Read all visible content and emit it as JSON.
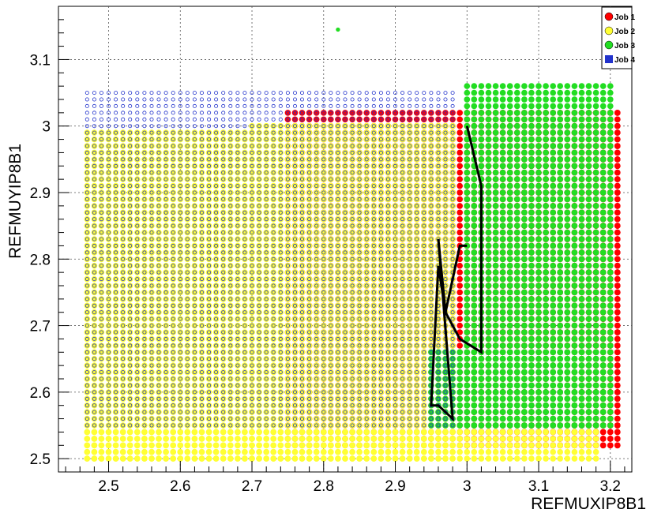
{
  "chart_data": {
    "type": "scatter",
    "title": "",
    "xlabel": "REFMUXIP8B1",
    "ylabel": "REFMUYIP8B1",
    "xlim": [
      2.43,
      3.23
    ],
    "ylim": [
      2.48,
      3.18
    ],
    "x_ticks": [
      2.5,
      2.6,
      2.7,
      2.8,
      2.9,
      3.0,
      3.1,
      3.2
    ],
    "x_tick_labels": [
      "2.5",
      "2.6",
      "2.7",
      "2.8",
      "2.9",
      "3",
      "3.1",
      "3.2"
    ],
    "y_ticks": [
      2.5,
      2.6,
      2.7,
      2.8,
      2.9,
      3.0,
      3.1
    ],
    "y_tick_labels": [
      "2.5",
      "2.6",
      "2.7",
      "2.8",
      "2.9",
      "3",
      "3.1"
    ],
    "grid": true,
    "legend_position": "top-right",
    "grid_step": 0.01,
    "series": [
      {
        "name": "Job 1",
        "color": "#ff0000",
        "marker": "filled-circle",
        "regions": [
          {
            "x": [
              2.75,
              3.21
            ],
            "y": [
              2.52,
              3.02
            ]
          },
          {
            "x": [
              3.0,
              3.21
            ],
            "y": [
              2.52,
              3.02
            ]
          },
          {
            "x": [
              3.18,
              3.21
            ],
            "y": [
              2.52,
              3.02
            ]
          }
        ]
      },
      {
        "name": "Job 2",
        "color": "#ffff33",
        "marker": "filled-circle",
        "regions": [
          {
            "x": [
              2.47,
              2.7
            ],
            "y": [
              2.5,
              2.99
            ]
          },
          {
            "x": [
              2.7,
              2.98
            ],
            "y": [
              2.5,
              3.0
            ]
          },
          {
            "x": [
              2.47,
              3.18
            ],
            "y": [
              2.5,
              2.54
            ]
          }
        ]
      },
      {
        "name": "Job 3",
        "color": "#22dd22",
        "marker": "filled-circle",
        "regions": [
          {
            "x": [
              3.0,
              3.2
            ],
            "y": [
              2.55,
              3.06
            ]
          },
          {
            "x": [
              2.95,
              3.19
            ],
            "y": [
              2.55,
              2.66
            ]
          }
        ]
      },
      {
        "name": "Job 4",
        "color": "#2233cc",
        "marker": "open-circle",
        "regions": [
          {
            "x": [
              2.47,
              2.98
            ],
            "y": [
              2.55,
              3.05
            ]
          }
        ]
      }
    ],
    "outliers": [
      {
        "series": "Job 3",
        "x": 2.82,
        "y": 3.145
      }
    ],
    "contour": {
      "color": "#000000",
      "points": [
        [
          3.0,
          3.0
        ],
        [
          3.02,
          2.91
        ],
        [
          3.02,
          2.66
        ],
        [
          2.99,
          2.68
        ],
        [
          2.97,
          2.72
        ],
        [
          2.96,
          2.83
        ],
        [
          2.98,
          2.56
        ],
        [
          2.96,
          2.58
        ],
        [
          2.95,
          2.58
        ],
        [
          2.96,
          2.79
        ],
        [
          2.97,
          2.72
        ],
        [
          2.99,
          2.82
        ],
        [
          3.0,
          2.82
        ]
      ]
    }
  }
}
